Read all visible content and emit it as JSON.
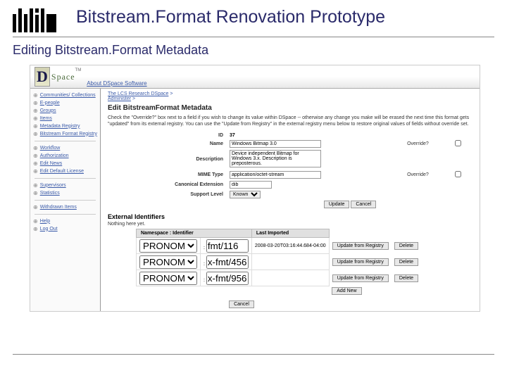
{
  "slide": {
    "title": "Bitstream.Format Renovation Prototype",
    "subtitle": "Editing Bitstream.Format Metadata"
  },
  "dspace": {
    "brand_word": "Space",
    "about": "About DSpace Software"
  },
  "sidebar": {
    "groups": [
      [
        "Communities/ Collections",
        "E-people",
        "Groups",
        "Items",
        "Metadata Registry",
        "Bitstream Format Registry"
      ],
      [
        "Workflow",
        "Authorization",
        "Edit News",
        "Edit Default License"
      ],
      [
        "Supervisors",
        "Statistics"
      ],
      [
        "Withdrawn Items"
      ],
      [
        "Help",
        "Log Out"
      ]
    ]
  },
  "crumbs": {
    "c1": "The LCS Research DSpace",
    "c2": "Administer"
  },
  "main": {
    "heading": "Edit BitstreamFormat Metadata",
    "help": "Check the \"Override?\" box next to a field if you wish to change its value within DSpace -- otherwise any change you make will be erased the next time this format gets \"updated\" from its external registry. You can use the \"Update from Registry\" in the external registry menu below to restore original values of fields without override set.",
    "id_label": "ID",
    "id_value": "37",
    "name_label": "Name",
    "name_value": "Windows Bitmap 3.0",
    "desc_label": "Description",
    "desc_value": "Device independent Bitmap for Windows 3.x. Description is preposterous.",
    "mime_label": "MIME Type",
    "mime_value": "application/octet-stream",
    "canon_label": "Canonical Extension",
    "canon_value": "dib",
    "supp_label": "Support Level",
    "supp_value": "Known",
    "override": "Override?",
    "btn_update": "Update",
    "btn_cancel": "Cancel"
  },
  "ext": {
    "heading": "External Identifiers",
    "note": "Nothing here yet.",
    "col_ns": "Namespace",
    "col_id": "Identifier",
    "col_last": "Last Imported",
    "ns": "PRONOM",
    "rows": [
      {
        "id": "fmt/116",
        "last": "2008-03-20T03:16:44.684-04:00"
      },
      {
        "id": "x-fmt/456",
        "last": ""
      },
      {
        "id": "x-fmt/956",
        "last": ""
      }
    ],
    "btn_upd": "Update from Registry",
    "btn_del": "Delete",
    "btn_add": "Add New"
  },
  "colors": {
    "title": "#2a2a6a",
    "link": "#3a5aa8",
    "rule": "#888888"
  }
}
